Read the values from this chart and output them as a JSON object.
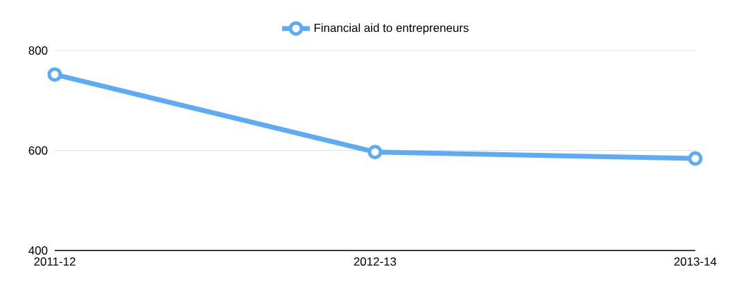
{
  "chart_data": {
    "type": "line",
    "categories": [
      "2011-12",
      "2012-13",
      "2013-14"
    ],
    "series": [
      {
        "name": "Financial aid to entrepreneurs",
        "color": "#5aabfa",
        "values": [
          752,
          597,
          584
        ]
      }
    ],
    "ylim": [
      400,
      800
    ],
    "yticks": [
      400,
      600,
      800
    ],
    "grid": "y",
    "legend": "top",
    "marker": "circle",
    "line_style": "solid"
  }
}
